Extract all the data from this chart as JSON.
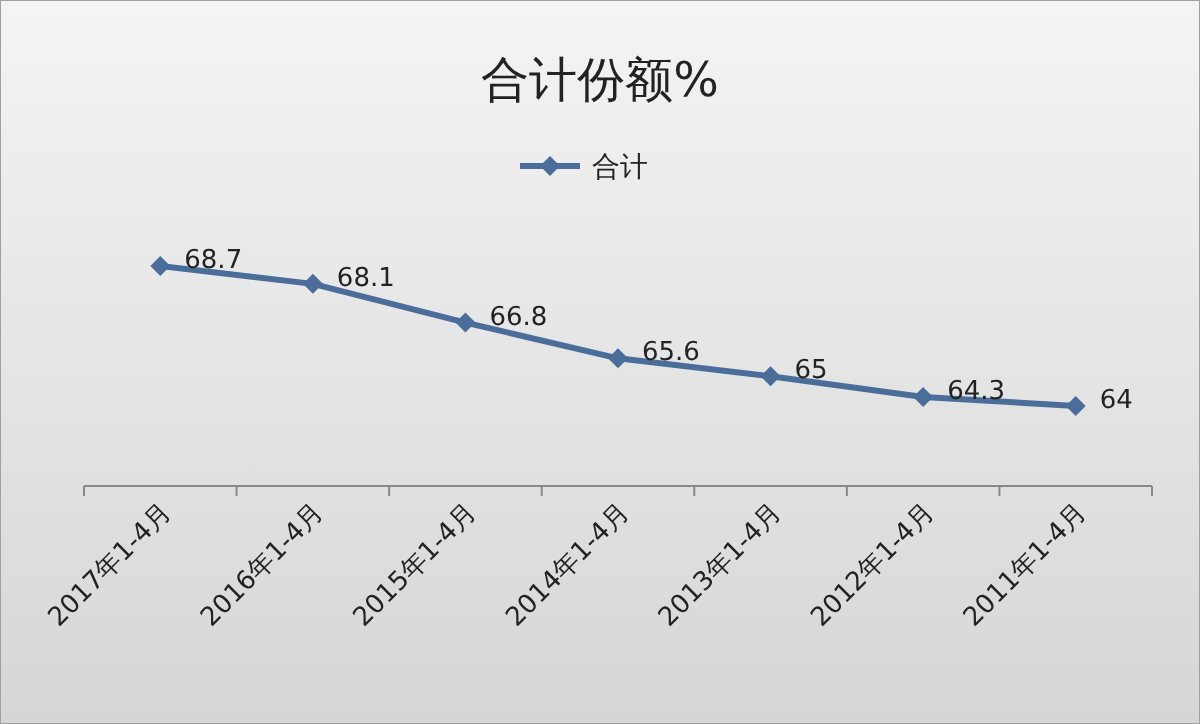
{
  "chart_data": {
    "type": "line",
    "title": "合计份额%",
    "categories": [
      "2017年1-4月",
      "2016年1-4月",
      "2015年1-4月",
      "2014年1-4月",
      "2013年1-4月",
      "2012年1-4月",
      "2011年1-4月"
    ],
    "series": [
      {
        "name": "合计",
        "color": "#4a6d9a",
        "values": [
          68.7,
          68.1,
          66.8,
          65.6,
          65,
          64.3,
          64
        ]
      }
    ],
    "data_labels": true,
    "legend": "top",
    "marker": "diamond"
  }
}
